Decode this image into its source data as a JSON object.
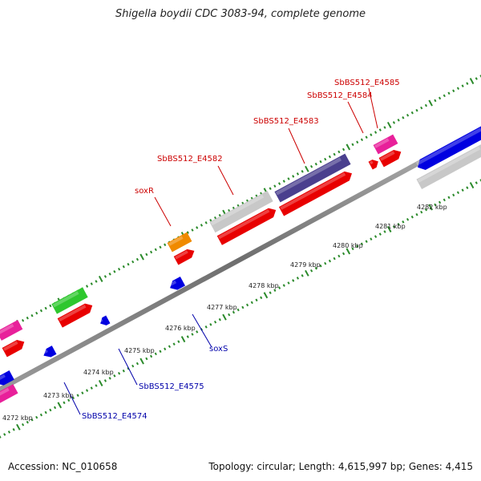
{
  "title": "Shigella boydii CDC 3083-94, complete genome",
  "footer": {
    "accession": "Accession: NC_010658",
    "topology": "Topology: circular; Length: 4,615,997 bp; Genes: 4,415"
  },
  "colors": {
    "backbone": "#808080",
    "forward_label": "#cc0000",
    "reverse_label": "#0000aa",
    "tick_dots": "#2a8a2a"
  },
  "tick_labels": [
    "4272 kbp",
    "4273 kbp",
    "4274 kbp",
    "4275 kbp",
    "4276 kbp",
    "4277 kbp",
    "4278 kbp",
    "4279 kbp",
    "4280 kbp",
    "4281 kbp",
    "4282 kbp"
  ],
  "forward_labels": [
    "soxR",
    "SbBS512_E4582",
    "SbBS512_E4583",
    "SbBS512_E4584",
    "SbBS512_E4585"
  ],
  "reverse_labels": [
    "soxS",
    "SbBS512_E4575",
    "SbBS512_E4574"
  ]
}
